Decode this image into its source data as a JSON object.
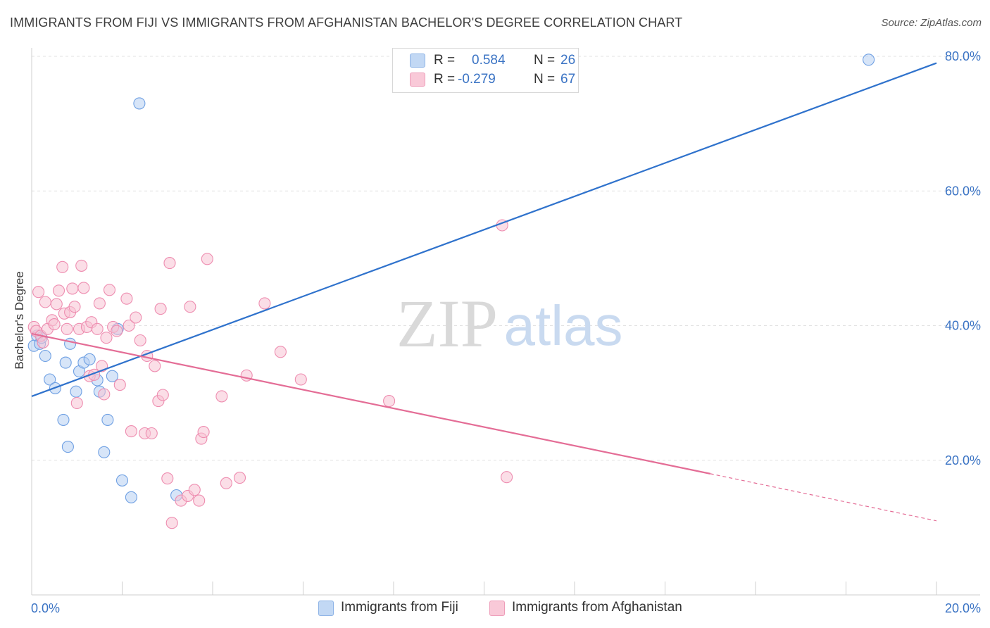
{
  "title": "IMMIGRANTS FROM FIJI VS IMMIGRANTS FROM AFGHANISTAN BACHELOR'S DEGREE CORRELATION CHART",
  "source": "Source: ZipAtlas.com",
  "watermark": {
    "zip": "ZIP",
    "atlas": "atlas"
  },
  "legend": {
    "rows": [
      {
        "r_label": "R =",
        "r_value": "0.584",
        "n_label": "N =",
        "n_value": "26",
        "color": "#aac8ef"
      },
      {
        "r_label": "R =",
        "r_value": "-0.279",
        "n_label": "N =",
        "n_value": "67",
        "color": "#f7b8cb"
      }
    ]
  },
  "chart_data": {
    "type": "scatter",
    "title": "IMMIGRANTS FROM FIJI VS IMMIGRANTS FROM AFGHANISTAN BACHELOR'S DEGREE CORRELATION CHART",
    "xlabel": "",
    "ylabel": "Bachelor's Degree",
    "xlim": [
      0,
      20
    ],
    "ylim": [
      0,
      83
    ],
    "x_tick_labels": [
      "0.0%",
      "20.0%"
    ],
    "y_ticks": [
      20,
      40,
      60,
      80
    ],
    "y_tick_labels": [
      "20.0%",
      "40.0%",
      "60.0%",
      "80.0%"
    ],
    "grid": true,
    "legend_position": "top-center",
    "series": [
      {
        "name": "Immigrants from Fiji",
        "color": "#6fa0e3",
        "fill": "#b7d0f2",
        "trend": {
          "x0": 0,
          "y0": 29.5,
          "x1": 20,
          "y1": 79.0,
          "dashed_from": null
        },
        "points": [
          [
            0.05,
            37.0
          ],
          [
            0.12,
            38.5
          ],
          [
            0.18,
            37.3
          ],
          [
            0.3,
            35.5
          ],
          [
            0.4,
            32.0
          ],
          [
            0.52,
            30.7
          ],
          [
            0.7,
            26.0
          ],
          [
            0.75,
            34.5
          ],
          [
            0.8,
            22.0
          ],
          [
            0.85,
            37.3
          ],
          [
            0.98,
            30.2
          ],
          [
            1.05,
            33.2
          ],
          [
            1.15,
            34.5
          ],
          [
            1.28,
            35.0
          ],
          [
            1.45,
            31.9
          ],
          [
            1.5,
            30.2
          ],
          [
            1.6,
            21.2
          ],
          [
            1.68,
            26.0
          ],
          [
            1.78,
            32.5
          ],
          [
            1.9,
            39.5
          ],
          [
            2.0,
            17.0
          ],
          [
            2.2,
            14.5
          ],
          [
            2.38,
            73.0
          ],
          [
            3.2,
            14.8
          ],
          [
            18.5,
            79.5
          ],
          [
            0.22,
            38.2
          ]
        ]
      },
      {
        "name": "Immigrants from Afghanistan",
        "color": "#ee8db0",
        "fill": "#f8c3d4",
        "trend": {
          "x0": 0,
          "y0": 38.8,
          "x1": 15.0,
          "y1": 18.0,
          "dashed_to": 20.0,
          "dashed_y": 11.0
        },
        "points": [
          [
            0.05,
            39.8
          ],
          [
            0.1,
            39.2
          ],
          [
            0.15,
            45.0
          ],
          [
            0.2,
            38.5
          ],
          [
            0.25,
            37.5
          ],
          [
            0.3,
            43.5
          ],
          [
            0.35,
            39.5
          ],
          [
            0.45,
            40.8
          ],
          [
            0.5,
            40.2
          ],
          [
            0.55,
            43.2
          ],
          [
            0.6,
            45.2
          ],
          [
            0.68,
            48.7
          ],
          [
            0.72,
            41.8
          ],
          [
            0.78,
            39.5
          ],
          [
            0.85,
            42.0
          ],
          [
            0.9,
            45.5
          ],
          [
            0.95,
            42.8
          ],
          [
            1.0,
            28.5
          ],
          [
            1.05,
            39.5
          ],
          [
            1.1,
            48.9
          ],
          [
            1.15,
            45.6
          ],
          [
            1.22,
            39.8
          ],
          [
            1.28,
            32.5
          ],
          [
            1.32,
            40.5
          ],
          [
            1.38,
            32.7
          ],
          [
            1.45,
            39.5
          ],
          [
            1.5,
            43.3
          ],
          [
            1.55,
            34.0
          ],
          [
            1.6,
            29.8
          ],
          [
            1.65,
            38.2
          ],
          [
            1.72,
            45.3
          ],
          [
            1.8,
            39.8
          ],
          [
            1.88,
            39.2
          ],
          [
            1.95,
            31.2
          ],
          [
            2.1,
            44.0
          ],
          [
            2.15,
            40.0
          ],
          [
            2.2,
            24.3
          ],
          [
            2.3,
            41.2
          ],
          [
            2.4,
            37.8
          ],
          [
            2.5,
            24.0
          ],
          [
            2.55,
            35.5
          ],
          [
            2.65,
            24.0
          ],
          [
            2.72,
            34.0
          ],
          [
            2.8,
            28.8
          ],
          [
            2.85,
            42.5
          ],
          [
            2.9,
            29.7
          ],
          [
            3.0,
            17.3
          ],
          [
            3.05,
            49.3
          ],
          [
            3.1,
            10.7
          ],
          [
            3.3,
            14.0
          ],
          [
            3.45,
            14.7
          ],
          [
            3.5,
            42.8
          ],
          [
            3.6,
            15.6
          ],
          [
            3.7,
            14.0
          ],
          [
            3.75,
            23.2
          ],
          [
            3.8,
            24.2
          ],
          [
            3.88,
            49.9
          ],
          [
            4.2,
            29.5
          ],
          [
            4.3,
            16.6
          ],
          [
            4.6,
            17.4
          ],
          [
            4.75,
            32.6
          ],
          [
            5.15,
            43.3
          ],
          [
            5.5,
            36.1
          ],
          [
            5.95,
            32.0
          ],
          [
            7.9,
            28.8
          ],
          [
            10.4,
            54.9
          ],
          [
            10.5,
            17.5
          ]
        ]
      }
    ]
  }
}
